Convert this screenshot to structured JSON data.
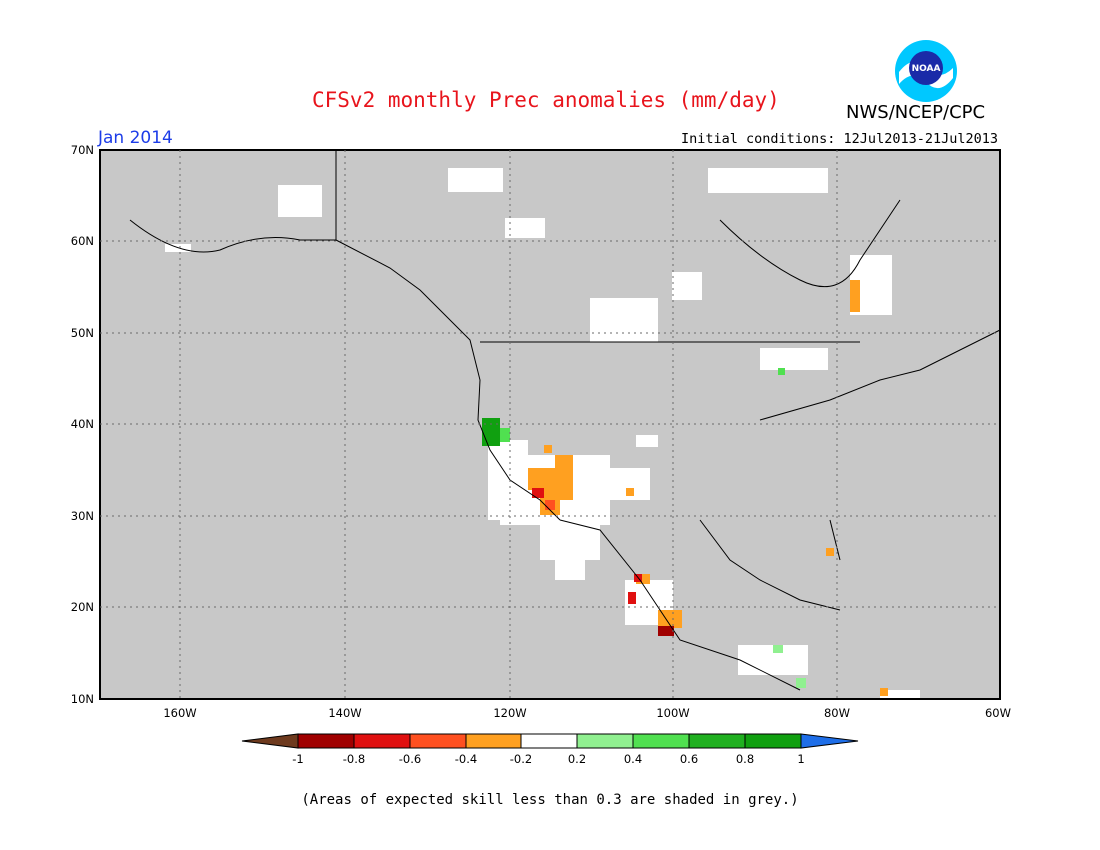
{
  "title": "CFSv2 monthly Prec anomalies (mm/day)",
  "agency": "NWS/NCEP/CPC",
  "logo_text": "NOAA",
  "month": "Jan 2014",
  "initial_conditions": "Initial conditions: 12Jul2013-21Jul2013",
  "note": "(Areas of expected skill less than 0.3 are shaded in grey.)",
  "lat_labels": [
    "70N",
    "60N",
    "50N",
    "40N",
    "30N",
    "20N",
    "10N"
  ],
  "lon_labels": [
    "160W",
    "140W",
    "120W",
    "100W",
    "80W",
    "60W"
  ],
  "colorbar": {
    "labels": [
      "-1",
      "-0.8",
      "-0.6",
      "-0.4",
      "-0.2",
      "0.2",
      "0.4",
      "0.6",
      "0.8",
      "1"
    ],
    "colors": [
      "#6e3a1e",
      "#a00000",
      "#e01010",
      "#ff5020",
      "#ffa020",
      "#ffffff",
      "#90f090",
      "#50e050",
      "#20b020",
      "#10a010",
      "#1e6ee8"
    ]
  },
  "colors": {
    "grey": "#c8c8c8",
    "land_white": "#ffffff"
  },
  "icon": "noaa-logo"
}
